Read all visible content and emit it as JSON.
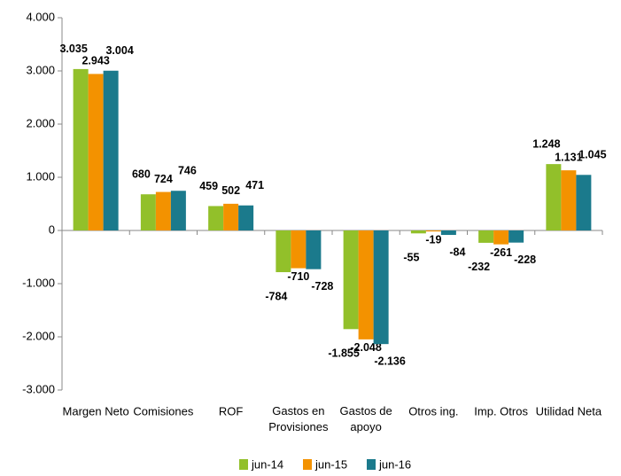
{
  "chart_data": {
    "type": "bar",
    "categories": [
      "Margen Neto",
      "Comisiones",
      "ROF",
      "Gastos en Provisiones",
      "Gastos de apoyo",
      "Otros ing.",
      "Imp. Otros",
      "Utilidad Neta"
    ],
    "series": [
      {
        "name": "jun-14",
        "color": "#92c02a",
        "values": [
          3035,
          680,
          459,
          -784,
          -1855,
          -55,
          -232,
          1248
        ],
        "value_labels": [
          "3.035",
          "680",
          "459",
          "-784",
          "-1.855",
          "-55",
          "-232",
          "1.248"
        ]
      },
      {
        "name": "jun-15",
        "color": "#f39200",
        "values": [
          2943,
          724,
          502,
          -710,
          -2048,
          -19,
          -261,
          1131
        ],
        "value_labels": [
          "2.943",
          "724",
          "502",
          "-710",
          "-2.048",
          "-19",
          "-261",
          "1.131"
        ]
      },
      {
        "name": "jun-16",
        "color": "#1b7a8c",
        "values": [
          3004,
          746,
          471,
          -728,
          -2136,
          -84,
          -228,
          1045
        ],
        "value_labels": [
          "3.004",
          "746",
          "471",
          "-728",
          "-2.136",
          "-84",
          "-228",
          "1.045"
        ]
      }
    ],
    "ylim": [
      -3000,
      4000
    ],
    "yticks": [
      {
        "value": -3000,
        "label": "-3.000"
      },
      {
        "value": -2000,
        "label": "-2.000"
      },
      {
        "value": -1000,
        "label": "-1.000"
      },
      0,
      {
        "value": 1000,
        "label": "1.000"
      },
      {
        "value": 2000,
        "label": "2.000"
      },
      {
        "value": 3000,
        "label": "3.000"
      },
      {
        "value": 4000,
        "label": "4.000"
      }
    ],
    "legend": "bottom"
  }
}
